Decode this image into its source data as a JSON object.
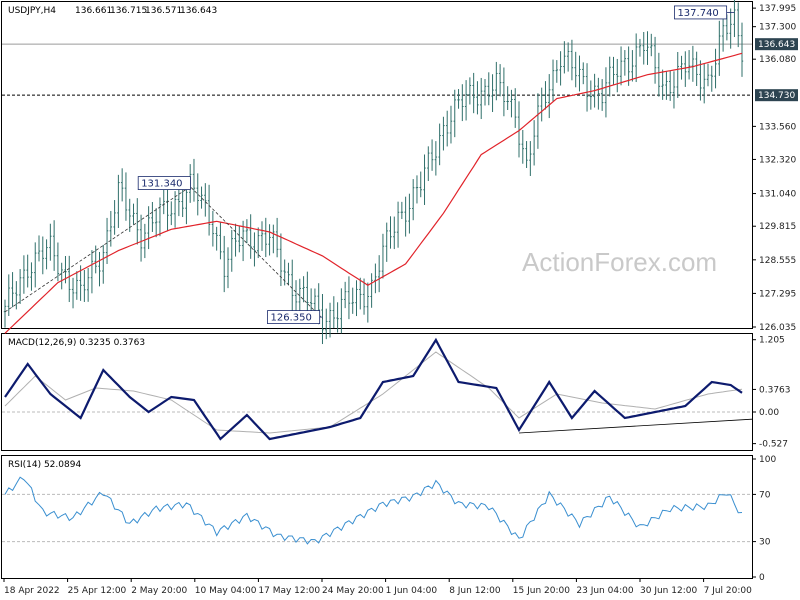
{
  "header": {
    "symbol": "USDJPY,H4",
    "open": "136.661",
    "high": "136.715",
    "low": "136.571",
    "close": "136.643"
  },
  "watermark": "ActionForex.com",
  "colors": {
    "candle": "#2f6f6a",
    "ma": "#e1232a",
    "macd": "#0d1b6e",
    "signal": "#b0b0b0",
    "rsi": "#3a8fd0",
    "tag_bg": "#2d4451"
  },
  "chart_data": [
    {
      "type": "candlestick",
      "title": "",
      "ylim": [
        126.035,
        138.0
      ],
      "y_ticks": [
        "137.995",
        "137.300",
        "136.643",
        "136.080",
        "134.730",
        "133.560",
        "132.320",
        "131.040",
        "129.815",
        "128.555",
        "127.295",
        "126.035"
      ],
      "price_tag": "136.643",
      "level_line": "134.730",
      "level_value": 134.73,
      "last_value": 136.643,
      "annotations": [
        "137.740",
        "131.340",
        "126.350"
      ],
      "moving_average": "red line",
      "x_labels": [
        "18 Apr 2022",
        "25 Apr 12:00",
        "2 May 20:00",
        "10 May 04:00",
        "17 May 12:00",
        "24 May 20:00",
        "1 Jun 04:00",
        "8 Jun 12:00",
        "15 Jun 20:00",
        "23 Jun 04:00",
        "30 Jun 12:00",
        "7 Jul 20:00"
      ],
      "anchors": [
        {
          "x": 0,
          "y": 126.6
        },
        {
          "x": 6,
          "y": 128.4
        },
        {
          "x": 12,
          "y": 128.9
        },
        {
          "x": 20,
          "y": 127.2
        },
        {
          "x": 26,
          "y": 129.0
        },
        {
          "x": 30,
          "y": 131.0
        },
        {
          "x": 36,
          "y": 129.6
        },
        {
          "x": 42,
          "y": 130.3
        },
        {
          "x": 49,
          "y": 131.3
        },
        {
          "x": 55,
          "y": 130.0
        },
        {
          "x": 58,
          "y": 128.3
        },
        {
          "x": 63,
          "y": 129.5
        },
        {
          "x": 70,
          "y": 129.3
        },
        {
          "x": 76,
          "y": 127.6
        },
        {
          "x": 84,
          "y": 126.4
        },
        {
          "x": 92,
          "y": 127.0
        },
        {
          "x": 97,
          "y": 127.6
        },
        {
          "x": 104,
          "y": 130.2
        },
        {
          "x": 110,
          "y": 131.3
        },
        {
          "x": 116,
          "y": 133.6
        },
        {
          "x": 124,
          "y": 134.9
        },
        {
          "x": 130,
          "y": 135.0
        },
        {
          "x": 135,
          "y": 134.2
        },
        {
          "x": 138,
          "y": 132.0
        },
        {
          "x": 142,
          "y": 134.4
        },
        {
          "x": 147,
          "y": 136.3
        },
        {
          "x": 152,
          "y": 135.3
        },
        {
          "x": 158,
          "y": 134.8
        },
        {
          "x": 164,
          "y": 136.0
        },
        {
          "x": 169,
          "y": 136.6
        },
        {
          "x": 174,
          "y": 135.1
        },
        {
          "x": 180,
          "y": 135.7
        },
        {
          "x": 186,
          "y": 135.4
        },
        {
          "x": 190,
          "y": 136.9
        },
        {
          "x": 193,
          "y": 137.6
        },
        {
          "x": 195,
          "y": 136.6
        }
      ],
      "ma_anchors": [
        {
          "x": 0,
          "y": 125.8
        },
        {
          "x": 14,
          "y": 127.7
        },
        {
          "x": 30,
          "y": 128.9
        },
        {
          "x": 44,
          "y": 129.7
        },
        {
          "x": 56,
          "y": 130.0
        },
        {
          "x": 70,
          "y": 129.6
        },
        {
          "x": 84,
          "y": 128.7
        },
        {
          "x": 96,
          "y": 127.6
        },
        {
          "x": 106,
          "y": 128.4
        },
        {
          "x": 116,
          "y": 130.3
        },
        {
          "x": 126,
          "y": 132.5
        },
        {
          "x": 136,
          "y": 133.4
        },
        {
          "x": 146,
          "y": 134.6
        },
        {
          "x": 156,
          "y": 134.9
        },
        {
          "x": 170,
          "y": 135.5
        },
        {
          "x": 182,
          "y": 135.8
        },
        {
          "x": 195,
          "y": 136.3
        }
      ]
    },
    {
      "type": "line",
      "title": "MACD(12,26,9) 0.3235 0.3763",
      "ylim": [
        -0.6,
        1.25
      ],
      "y_ticks": [
        "1.205",
        "0.3763",
        "0.00",
        "-0.527"
      ],
      "macd_anchors": [
        {
          "x": 0,
          "y": 0.25
        },
        {
          "x": 6,
          "y": 0.8
        },
        {
          "x": 12,
          "y": 0.3
        },
        {
          "x": 20,
          "y": -0.1
        },
        {
          "x": 26,
          "y": 0.7
        },
        {
          "x": 33,
          "y": 0.25
        },
        {
          "x": 38,
          "y": 0.0
        },
        {
          "x": 44,
          "y": 0.25
        },
        {
          "x": 50,
          "y": 0.2
        },
        {
          "x": 57,
          "y": -0.45
        },
        {
          "x": 64,
          "y": -0.05
        },
        {
          "x": 70,
          "y": -0.45
        },
        {
          "x": 78,
          "y": -0.35
        },
        {
          "x": 86,
          "y": -0.25
        },
        {
          "x": 94,
          "y": -0.1
        },
        {
          "x": 100,
          "y": 0.5
        },
        {
          "x": 108,
          "y": 0.6
        },
        {
          "x": 114,
          "y": 1.2
        },
        {
          "x": 120,
          "y": 0.5
        },
        {
          "x": 130,
          "y": 0.4
        },
        {
          "x": 136,
          "y": -0.3
        },
        {
          "x": 144,
          "y": 0.5
        },
        {
          "x": 150,
          "y": -0.1
        },
        {
          "x": 156,
          "y": 0.35
        },
        {
          "x": 164,
          "y": -0.1
        },
        {
          "x": 172,
          "y": 0.0
        },
        {
          "x": 180,
          "y": 0.1
        },
        {
          "x": 187,
          "y": 0.5
        },
        {
          "x": 192,
          "y": 0.45
        },
        {
          "x": 195,
          "y": 0.32
        }
      ],
      "signal_anchors": [
        {
          "x": 0,
          "y": 0.1
        },
        {
          "x": 8,
          "y": 0.6
        },
        {
          "x": 16,
          "y": 0.2
        },
        {
          "x": 24,
          "y": 0.4
        },
        {
          "x": 34,
          "y": 0.35
        },
        {
          "x": 44,
          "y": 0.2
        },
        {
          "x": 56,
          "y": -0.3
        },
        {
          "x": 70,
          "y": -0.35
        },
        {
          "x": 86,
          "y": -0.25
        },
        {
          "x": 100,
          "y": 0.3
        },
        {
          "x": 114,
          "y": 1.0
        },
        {
          "x": 128,
          "y": 0.4
        },
        {
          "x": 136,
          "y": -0.1
        },
        {
          "x": 146,
          "y": 0.3
        },
        {
          "x": 158,
          "y": 0.15
        },
        {
          "x": 172,
          "y": 0.05
        },
        {
          "x": 186,
          "y": 0.3
        },
        {
          "x": 195,
          "y": 0.38
        }
      ],
      "trendline": [
        {
          "x": 136,
          "y": -0.35
        },
        {
          "x": 196,
          "y": -0.12
        }
      ]
    },
    {
      "type": "line",
      "title": "RSI(14) 52.0894",
      "ylim": [
        0,
        100
      ],
      "y_ticks": [
        "100",
        "70",
        "30",
        "0"
      ],
      "rsi_anchors": [
        {
          "x": 0,
          "y": 70
        },
        {
          "x": 5,
          "y": 85
        },
        {
          "x": 10,
          "y": 55
        },
        {
          "x": 18,
          "y": 50
        },
        {
          "x": 26,
          "y": 72
        },
        {
          "x": 33,
          "y": 45
        },
        {
          "x": 40,
          "y": 58
        },
        {
          "x": 48,
          "y": 62
        },
        {
          "x": 56,
          "y": 38
        },
        {
          "x": 64,
          "y": 52
        },
        {
          "x": 72,
          "y": 35
        },
        {
          "x": 82,
          "y": 30
        },
        {
          "x": 92,
          "y": 48
        },
        {
          "x": 100,
          "y": 62
        },
        {
          "x": 108,
          "y": 68
        },
        {
          "x": 114,
          "y": 80
        },
        {
          "x": 120,
          "y": 62
        },
        {
          "x": 128,
          "y": 60
        },
        {
          "x": 136,
          "y": 32
        },
        {
          "x": 144,
          "y": 70
        },
        {
          "x": 152,
          "y": 45
        },
        {
          "x": 160,
          "y": 68
        },
        {
          "x": 168,
          "y": 42
        },
        {
          "x": 176,
          "y": 58
        },
        {
          "x": 186,
          "y": 60
        },
        {
          "x": 191,
          "y": 72
        },
        {
          "x": 195,
          "y": 52
        }
      ]
    }
  ]
}
